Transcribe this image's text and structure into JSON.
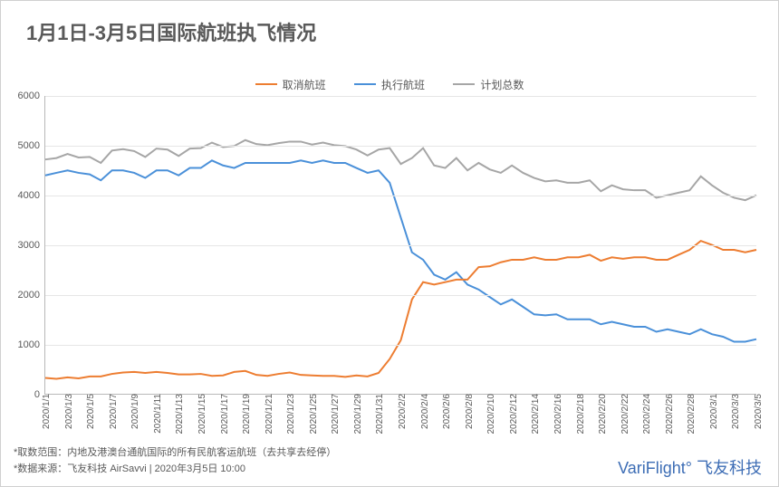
{
  "title": "1月1日-3月5日国际航班执飞情况",
  "legend": {
    "cancelled": "取消航班",
    "operated": "执行航班",
    "planned": "计划总数"
  },
  "colors": {
    "cancelled": "#ed7d31",
    "operated": "#4a90d9",
    "planned": "#a6a6a6",
    "grid": "#e6e6e6",
    "axis": "#b8b8b8",
    "text": "#595959",
    "brand": "#3d6db5",
    "bg": "#ffffff"
  },
  "chart": {
    "type": "line",
    "ylim": [
      0,
      6000
    ],
    "ytick_step": 1000,
    "line_width": 2,
    "title_fontsize": 22,
    "tick_fontsize": 11,
    "xtick_fontsize": 10,
    "legend_fontsize": 12,
    "x_labels": [
      "2020/1/1",
      "2020/1/3",
      "2020/1/5",
      "2020/1/7",
      "2020/1/9",
      "2020/1/11",
      "2020/1/13",
      "2020/1/15",
      "2020/1/17",
      "2020/1/19",
      "2020/1/21",
      "2020/1/23",
      "2020/1/25",
      "2020/1/27",
      "2020/1/29",
      "2020/1/31",
      "2020/2/2",
      "2020/2/4",
      "2020/2/6",
      "2020/2/8",
      "2020/2/10",
      "2020/2/12",
      "2020/2/14",
      "2020/2/16",
      "2020/2/18",
      "2020/2/20",
      "2020/2/22",
      "2020/2/24",
      "2020/2/26",
      "2020/2/28",
      "2020/3/1",
      "2020/3/3",
      "2020/3/5"
    ],
    "series": {
      "cancelled": [
        320,
        300,
        330,
        310,
        350,
        350,
        400,
        430,
        440,
        420,
        440,
        420,
        390,
        390,
        400,
        360,
        370,
        440,
        460,
        380,
        360,
        400,
        430,
        380,
        370,
        360,
        360,
        340,
        370,
        350,
        420,
        700,
        1080,
        1900,
        2250,
        2200,
        2250,
        2300,
        2300,
        2550,
        2570,
        2650,
        2700,
        2700,
        2750,
        2700,
        2700,
        2750,
        2750,
        2800,
        2680,
        2750,
        2720,
        2750,
        2750,
        2700,
        2700,
        2800,
        2900,
        3080,
        3000,
        2900,
        2900,
        2850,
        2900
      ],
      "operated": [
        4400,
        4450,
        4500,
        4450,
        4420,
        4300,
        4500,
        4500,
        4450,
        4350,
        4500,
        4500,
        4400,
        4550,
        4550,
        4700,
        4600,
        4550,
        4650,
        4650,
        4650,
        4650,
        4650,
        4700,
        4650,
        4700,
        4650,
        4650,
        4550,
        4450,
        4500,
        4250,
        3550,
        2850,
        2700,
        2400,
        2300,
        2450,
        2200,
        2100,
        1950,
        1800,
        1900,
        1750,
        1600,
        1580,
        1600,
        1500,
        1500,
        1500,
        1400,
        1450,
        1400,
        1350,
        1350,
        1250,
        1300,
        1250,
        1200,
        1300,
        1200,
        1150,
        1050,
        1050,
        1100
      ],
      "planned": [
        4720,
        4750,
        4830,
        4760,
        4770,
        4650,
        4900,
        4930,
        4890,
        4770,
        4940,
        4920,
        4790,
        4940,
        4950,
        5060,
        4970,
        4990,
        5110,
        5030,
        5010,
        5050,
        5080,
        5080,
        5020,
        5060,
        5010,
        4990,
        4920,
        4800,
        4920,
        4950,
        4630,
        4750,
        4950,
        4600,
        4550,
        4750,
        4500,
        4650,
        4520,
        4450,
        4600,
        4450,
        4350,
        4280,
        4300,
        4250,
        4250,
        4300,
        4080,
        4200,
        4120,
        4100,
        4100,
        3950,
        4000,
        4050,
        4100,
        4380,
        4200,
        4050,
        3950,
        3900,
        4000
      ]
    }
  },
  "footnotes": {
    "line1": "*取数范围：内地及港澳台通航国际的所有民航客运航班（去共享去经停）",
    "line2": "*数据来源：飞友科技 AirSavvi   |   2020年3月5日 10:00"
  },
  "brand": "VariFlight° 飞友科技"
}
